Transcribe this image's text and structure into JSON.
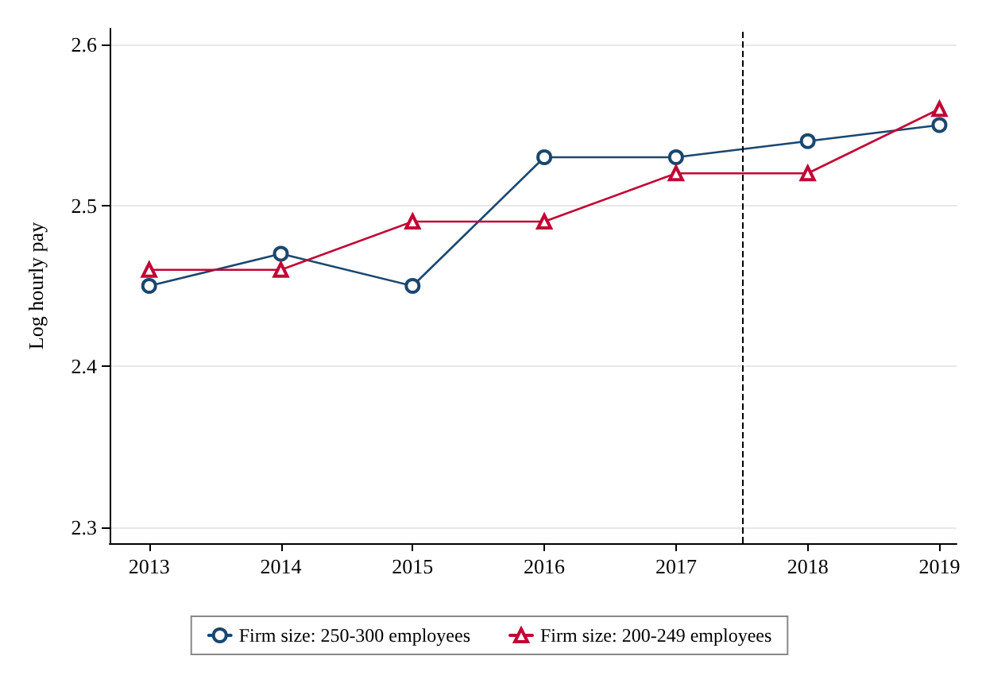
{
  "chart_data": {
    "type": "line",
    "ylabel": "Log hourly pay",
    "x": [
      2013,
      2014,
      2015,
      2016,
      2017,
      2018,
      2019
    ],
    "series": [
      {
        "name": "Firm size: 250-300 employees",
        "color": "#1a476f",
        "marker": "circle",
        "values": [
          2.45,
          2.47,
          2.45,
          2.53,
          2.53,
          2.54,
          2.55
        ]
      },
      {
        "name": "Firm size: 200-249 employees",
        "color": "#c10534",
        "marker": "triangle",
        "values": [
          2.46,
          2.46,
          2.49,
          2.49,
          2.52,
          2.52,
          2.56
        ]
      }
    ],
    "xlim": [
      2012.7,
      2019.13
    ],
    "xticks": [
      2013,
      2014,
      2015,
      2016,
      2017,
      2018,
      2019
    ],
    "ylim": [
      2.29,
      2.61
    ],
    "yticks": [
      2.3,
      2.4,
      2.5,
      2.6
    ],
    "grid": "y",
    "legend": "bottom",
    "line_style": "solid",
    "ref_lines": [
      {
        "axis": "x",
        "value": 2017.5,
        "color": "#000000",
        "line_style": "dashed"
      }
    ]
  }
}
